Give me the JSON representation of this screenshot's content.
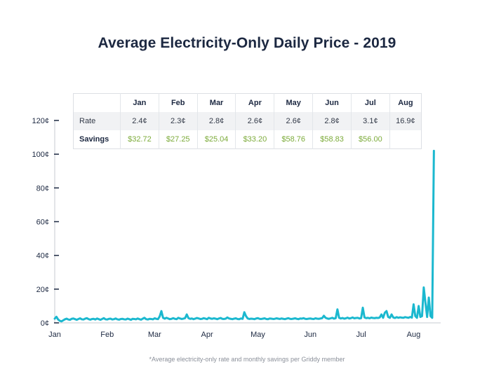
{
  "chart_data": {
    "type": "line",
    "title": "Average Electricity-Only Daily Price - 2019",
    "xlabel": "",
    "ylabel": "",
    "ylim": [
      0,
      120
    ],
    "yticks": [
      "0¢",
      "20¢",
      "40¢",
      "60¢",
      "80¢",
      "100¢",
      "120¢"
    ],
    "xticks": [
      "Jan",
      "Feb",
      "Mar",
      "Apr",
      "May",
      "Jun",
      "Jul",
      "Aug"
    ],
    "x_range": [
      "2019-01-01",
      "2019-08-17"
    ],
    "line_color": "#1bb8cf",
    "grid": false,
    "series": [
      {
        "values": [
          2.5,
          3.6,
          2.0,
          1.2,
          0.9,
          1.5,
          2.1,
          2.5,
          2.0,
          1.8,
          2.4,
          2.6,
          2.2,
          1.8,
          2.3,
          2.7,
          2.1,
          2.0,
          2.5,
          2.8,
          2.2,
          1.9,
          2.3,
          2.4,
          2.0,
          2.6,
          2.2,
          1.8,
          2.3,
          2.8,
          2.1,
          2.0,
          2.4,
          2.5,
          2.0,
          2.2,
          2.6,
          2.1,
          1.9,
          2.3,
          2.4,
          2.1,
          2.0,
          2.5,
          2.2,
          1.8,
          2.4,
          2.3,
          2.1,
          2.6,
          2.2,
          1.9,
          2.5,
          3.0,
          2.2,
          2.0,
          2.4,
          2.3,
          2.1,
          2.7,
          2.4,
          2.2,
          3.8,
          7.0,
          3.0,
          2.5,
          3.0,
          2.6,
          2.2,
          2.4,
          2.8,
          2.4,
          2.2,
          3.0,
          2.6,
          2.3,
          2.5,
          2.8,
          5.0,
          2.8,
          2.4,
          2.6,
          2.2,
          2.5,
          2.9,
          2.6,
          2.3,
          2.4,
          2.8,
          2.5,
          2.2,
          3.0,
          2.6,
          2.4,
          2.7,
          2.5,
          2.2,
          2.6,
          2.9,
          2.4,
          2.3,
          2.5,
          3.2,
          2.6,
          2.4,
          2.2,
          2.5,
          2.7,
          2.3,
          2.2,
          2.6,
          2.4,
          6.3,
          4.0,
          2.6,
          2.3,
          2.5,
          2.4,
          2.2,
          2.6,
          2.8,
          2.4,
          2.3,
          2.5,
          2.7,
          2.3,
          2.2,
          2.6,
          2.5,
          2.3,
          2.4,
          2.7,
          2.5,
          2.3,
          2.6,
          2.4,
          2.2,
          2.5,
          2.8,
          2.4,
          2.3,
          2.5,
          2.7,
          2.4,
          2.2,
          2.6,
          2.5,
          2.8,
          2.4,
          2.3,
          2.5,
          2.6,
          2.4,
          2.3,
          2.7,
          2.5,
          2.4,
          2.6,
          2.8,
          4.2,
          3.0,
          2.6,
          2.4,
          2.7,
          3.0,
          2.5,
          2.8,
          8.0,
          3.0,
          2.6,
          2.9,
          2.5,
          2.7,
          3.1,
          2.6,
          2.8,
          3.2,
          2.7,
          2.9,
          3.0,
          2.6,
          2.8,
          9.0,
          3.2,
          2.8,
          3.0,
          2.7,
          3.1,
          2.9,
          2.8,
          3.0,
          2.9,
          3.2,
          5.0,
          3.0,
          6.0,
          7.0,
          3.5,
          3.0,
          5.0,
          3.2,
          2.9,
          3.4,
          3.0,
          3.3,
          3.1,
          3.0,
          3.4,
          3.2,
          3.0,
          3.5,
          3.1,
          11.0,
          4.0,
          3.0,
          10.0,
          3.5,
          4.0,
          21.0,
          12.0,
          3.5,
          15.0,
          4.0,
          3.0,
          102.0
        ]
      }
    ],
    "table": {
      "headers": [
        "",
        "Jan",
        "Feb",
        "Mar",
        "Apr",
        "May",
        "Jun",
        "Jul",
        "Aug"
      ],
      "rate_label": "Rate",
      "rates": [
        "2.4¢",
        "2.3¢",
        "2.8¢",
        "2.6¢",
        "2.6¢",
        "2.8¢",
        "3.1¢",
        "16.9¢"
      ],
      "savings_label": "Savings",
      "savings": [
        "$32.72",
        "$27.25",
        "$25.04",
        "$33.20",
        "$58.76",
        "$58.83",
        "$56.00",
        ""
      ]
    },
    "footnote": "*Average electricity-only rate and monthly savings per Griddy member"
  }
}
